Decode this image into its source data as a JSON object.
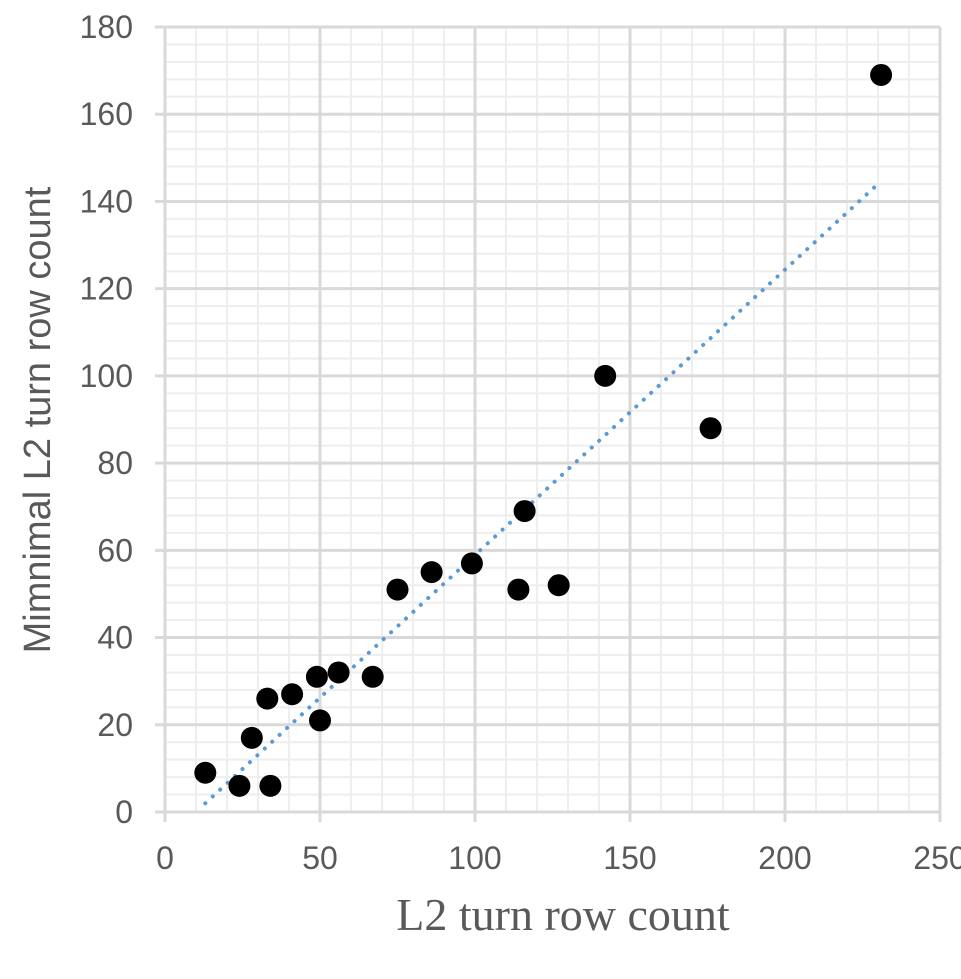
{
  "chart_data": {
    "type": "scatter",
    "title": "",
    "xlabel": "L2 turn row count",
    "ylabel": "Mimnimal L2 turn row count",
    "xlim": [
      0,
      250
    ],
    "ylim": [
      0,
      180
    ],
    "x_ticks": [
      0,
      50,
      100,
      150,
      200,
      250
    ],
    "y_ticks": [
      0,
      20,
      40,
      60,
      80,
      100,
      120,
      140,
      160,
      180
    ],
    "x_tick_labels": [
      "0",
      "50",
      "100",
      "150",
      "200",
      "250"
    ],
    "y_tick_labels": [
      "0",
      "20",
      "40",
      "60",
      "80",
      "100",
      "120",
      "140",
      "160",
      "180"
    ],
    "grid": {
      "major": true,
      "minor": true,
      "x_minor_step": 10,
      "y_minor_step": 4
    },
    "legend": "none",
    "series": [
      {
        "color": "#000000",
        "points": [
          {
            "x": 13,
            "y": 9
          },
          {
            "x": 24,
            "y": 6
          },
          {
            "x": 34,
            "y": 6
          },
          {
            "x": 28,
            "y": 17
          },
          {
            "x": 33,
            "y": 26
          },
          {
            "x": 41,
            "y": 27
          },
          {
            "x": 49,
            "y": 31
          },
          {
            "x": 50,
            "y": 21
          },
          {
            "x": 56,
            "y": 32
          },
          {
            "x": 67,
            "y": 31
          },
          {
            "x": 75,
            "y": 51
          },
          {
            "x": 86,
            "y": 55
          },
          {
            "x": 99,
            "y": 57
          },
          {
            "x": 114,
            "y": 51
          },
          {
            "x": 116,
            "y": 69
          },
          {
            "x": 127,
            "y": 52
          },
          {
            "x": 142,
            "y": 100
          },
          {
            "x": 176,
            "y": 88
          },
          {
            "x": 231,
            "y": 169
          }
        ]
      }
    ],
    "trendline": {
      "type": "linear",
      "style": "dotted",
      "color": "#5B9BD5",
      "x_start": 13,
      "y_start": 2,
      "x_end": 230,
      "y_end": 144
    },
    "colors": {
      "axis_text": "#595959",
      "grid_major": "#d9d9d9",
      "grid_minor": "#eeeeee",
      "marker": "#000000",
      "trendline": "#5B9BD5"
    }
  }
}
